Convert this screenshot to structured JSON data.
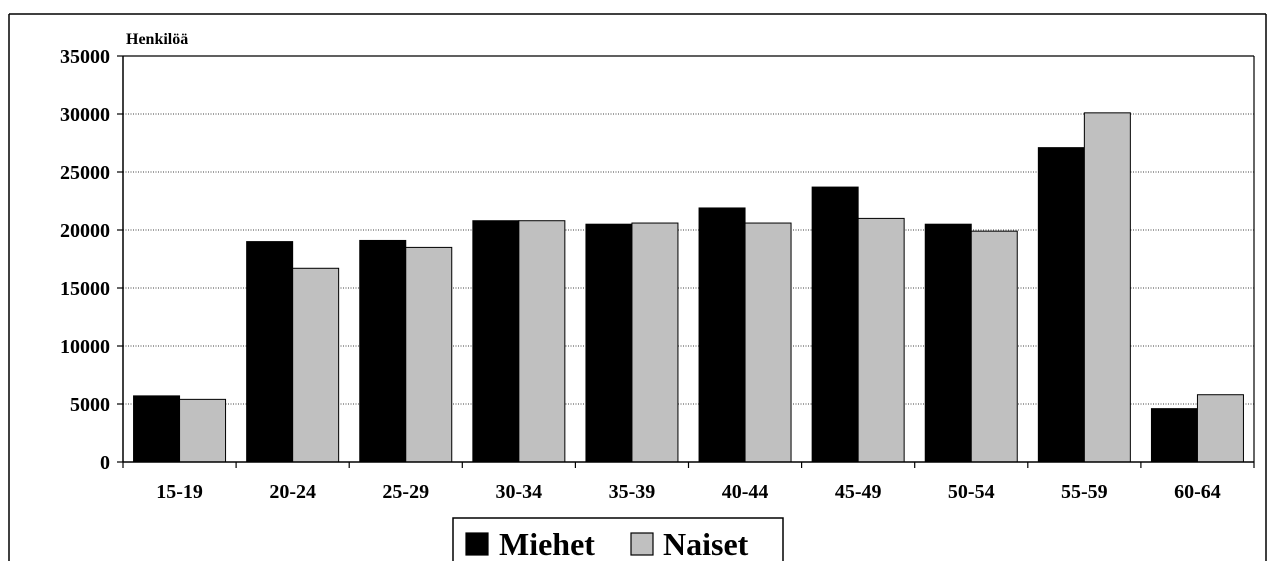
{
  "chart_data": {
    "type": "bar",
    "ylabel": "Henkilöä",
    "categories": [
      "15-19",
      "20-24",
      "25-29",
      "30-34",
      "35-39",
      "40-44",
      "45-49",
      "50-54",
      "55-59",
      "60-64"
    ],
    "series": [
      {
        "name": "Miehet",
        "color": "#000000",
        "values": [
          5700,
          19000,
          19100,
          20800,
          20500,
          21900,
          23700,
          20500,
          27100,
          4600
        ]
      },
      {
        "name": "Naiset",
        "color": "#c0c0c0",
        "values": [
          5400,
          16700,
          18500,
          20800,
          20600,
          20600,
          21000,
          19900,
          30100,
          5800
        ]
      }
    ],
    "ylim": [
      0,
      35000
    ],
    "yticks": [
      0,
      5000,
      10000,
      15000,
      20000,
      25000,
      30000,
      35000
    ],
    "grid": true,
    "legend_position": "bottom-center"
  }
}
